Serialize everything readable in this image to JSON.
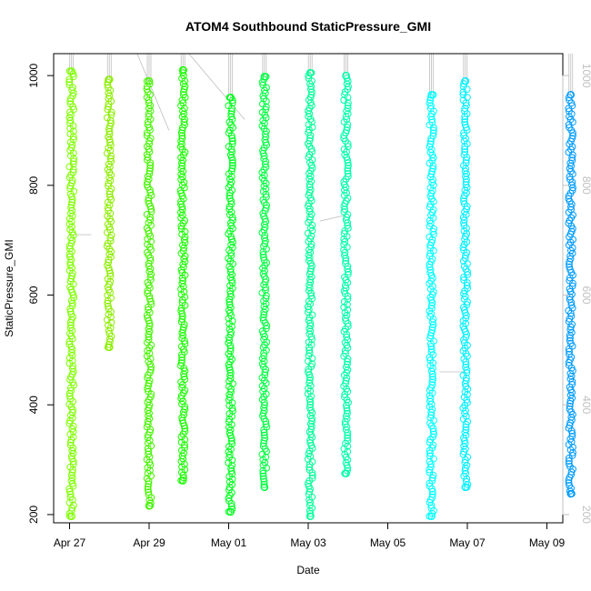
{
  "chart_data": {
    "type": "scatter",
    "title": "ATOM4 Southbound StaticPressure_GMI",
    "xlabel": "Date",
    "ylabel": "StaticPressure_GMI",
    "x_unit": "days since Apr 27",
    "xlim": [
      -0.4,
      12.4
    ],
    "ylim": [
      185,
      1040
    ],
    "x_ticks": [
      {
        "value": 0,
        "label": "Apr 27"
      },
      {
        "value": 2,
        "label": "Apr 29"
      },
      {
        "value": 4,
        "label": "May 01"
      },
      {
        "value": 6,
        "label": "May 03"
      },
      {
        "value": 8,
        "label": "May 05"
      },
      {
        "value": 10,
        "label": "May 07"
      },
      {
        "value": 12,
        "label": "May 09"
      }
    ],
    "y_ticks": [
      200,
      400,
      600,
      800,
      1000
    ],
    "right_axis": {
      "lim": [
        1040,
        185
      ],
      "ticks": [
        200,
        400,
        600,
        800,
        1000
      ],
      "color": "#c0c0c0"
    },
    "altitude_trace_color": "#bebebe",
    "profiles": [
      {
        "x": 0.05,
        "top": 1008,
        "bottom": 197,
        "color": "#7fff00"
      },
      {
        "x": 1.0,
        "top": 993,
        "bottom": 505,
        "color": "#8ced00"
      },
      {
        "x": 2.0,
        "top": 990,
        "bottom": 216,
        "color": "#44f400"
      },
      {
        "x": 2.85,
        "top": 1010,
        "bottom": 262,
        "color": "#19ff00"
      },
      {
        "x": 4.05,
        "top": 960,
        "bottom": 205,
        "color": "#00ff1e"
      },
      {
        "x": 4.9,
        "top": 998,
        "bottom": 250,
        "color": "#00ff40"
      },
      {
        "x": 6.05,
        "top": 1005,
        "bottom": 197,
        "color": "#00ff99"
      },
      {
        "x": 6.95,
        "top": 1000,
        "bottom": 275,
        "color": "#00ffaa"
      },
      {
        "x": 9.1,
        "top": 965,
        "bottom": 197,
        "color": "#00ffff"
      },
      {
        "x": 9.95,
        "top": 990,
        "bottom": 250,
        "color": "#00f0ff"
      },
      {
        "x": 12.6,
        "top": 965,
        "bottom": 238,
        "color": "#009cff"
      }
    ]
  }
}
